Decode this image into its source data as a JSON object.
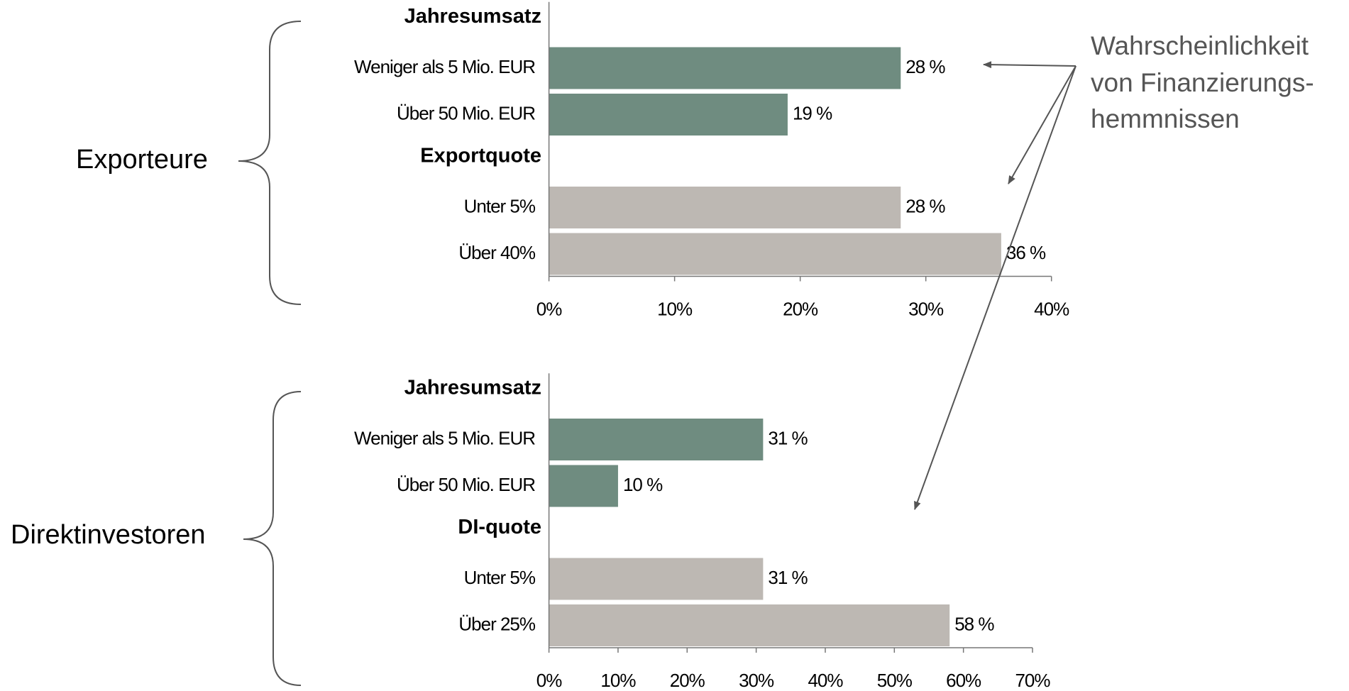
{
  "chart_data": [
    {
      "type": "bar",
      "orientation": "horizontal",
      "label": "Exporteure",
      "groups": [
        {
          "title": "Jahresumsatz",
          "color": "#6f8c80",
          "categories": [
            "Weniger als 5 Mio. EUR",
            "Über 50  Mio. EUR"
          ],
          "values": [
            28,
            19
          ],
          "value_labels": [
            "28 %",
            "19 %"
          ]
        },
        {
          "title": "Exportquote",
          "color": "#bdb8b3",
          "categories": [
            "Unter 5%",
            "Über 40%"
          ],
          "values": [
            28,
            36
          ],
          "value_labels": [
            "28 %",
            "36 %"
          ]
        }
      ],
      "xlim": [
        0,
        40
      ],
      "xticks": [
        {
          "value": 0,
          "label": "0%"
        },
        {
          "value": 10,
          "label": "10%"
        },
        {
          "value": 20,
          "label": "20%"
        },
        {
          "value": 30,
          "label": "30%"
        },
        {
          "value": 40,
          "label": "40%"
        }
      ]
    },
    {
      "type": "bar",
      "orientation": "horizontal",
      "label": "Direktinvestoren",
      "groups": [
        {
          "title": "Jahresumsatz",
          "color": "#6f8c80",
          "categories": [
            "Weniger als 5 Mio. EUR",
            "Über 50  Mio. EUR"
          ],
          "values": [
            31,
            10
          ],
          "value_labels": [
            "31 %",
            "10 %"
          ]
        },
        {
          "title": "DI-quote",
          "color": "#bdb8b3",
          "categories": [
            "Unter 5%",
            "Über 25%"
          ],
          "values": [
            31,
            58
          ],
          "value_labels": [
            "31 %",
            "58 %"
          ]
        }
      ],
      "xlim": [
        0,
        70
      ],
      "xticks": [
        {
          "value": 0,
          "label": "0%"
        },
        {
          "value": 10,
          "label": "10%"
        },
        {
          "value": 20,
          "label": "20%"
        },
        {
          "value": 30,
          "label": "30%"
        },
        {
          "value": 40,
          "label": "40%"
        },
        {
          "value": 50,
          "label": "50%"
        },
        {
          "value": 60,
          "label": "60%"
        },
        {
          "value": 70,
          "label": "70%"
        }
      ]
    }
  ],
  "annotation": [
    "Wahrscheinlichkeit",
    "von Finanzierungs-",
    "hemmnissen"
  ]
}
